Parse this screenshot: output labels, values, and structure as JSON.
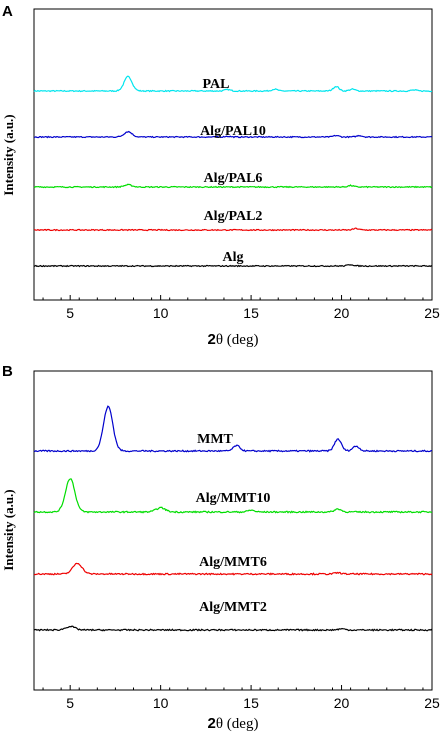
{
  "chart_data": [
    {
      "type": "line",
      "panel": "A",
      "xlabel_bold": "2",
      "xlabel_rest": "θ (deg)",
      "ylabel": "Intensity (a.u.)",
      "xlim": [
        3,
        25
      ],
      "xticks": [
        5,
        10,
        15,
        20,
        25
      ],
      "series": [
        {
          "name": "PAL",
          "color": "#00e5ee",
          "peaks": [
            [
              8.2,
              1.2
            ],
            [
              13.7,
              0.12
            ],
            [
              16.3,
              0.15
            ],
            [
              19.7,
              0.38
            ],
            [
              20.6,
              0.15
            ],
            [
              24.0,
              0.08
            ]
          ]
        },
        {
          "name": "Alg/PAL10",
          "color": "#0000cc",
          "peaks": [
            [
              8.2,
              0.45
            ],
            [
              13.7,
              0.06
            ],
            [
              19.7,
              0.12
            ],
            [
              21.0,
              0.12
            ]
          ]
        },
        {
          "name": "Alg/PAL6",
          "color": "#00dd00",
          "peaks": [
            [
              8.2,
              0.18
            ],
            [
              20.5,
              0.12
            ]
          ]
        },
        {
          "name": "Alg/PAL2",
          "color": "#ee0000",
          "peaks": [
            [
              20.8,
              0.12
            ]
          ]
        },
        {
          "name": "Alg",
          "color": "#000000",
          "peaks": [
            [
              20.5,
              0.12
            ]
          ]
        }
      ]
    },
    {
      "type": "line",
      "panel": "B",
      "xlabel_bold": "2",
      "xlabel_rest": "θ (deg)",
      "ylabel": "Intensity (a.u.)",
      "xlim": [
        3,
        25
      ],
      "xticks": [
        5,
        10,
        15,
        20,
        25
      ],
      "series": [
        {
          "name": "MMT",
          "color": "#0000cc",
          "peaks": [
            [
              7.1,
              3.7
            ],
            [
              14.2,
              0.45
            ],
            [
              19.8,
              1.0
            ],
            [
              20.8,
              0.4
            ]
          ]
        },
        {
          "name": "Alg/MMT10",
          "color": "#00dd00",
          "peaks": [
            [
              5.0,
              2.8
            ],
            [
              10.0,
              0.35
            ],
            [
              15.0,
              0.15
            ],
            [
              19.8,
              0.25
            ]
          ]
        },
        {
          "name": "Alg/MMT6",
          "color": "#ee0000",
          "peaks": [
            [
              5.4,
              0.9
            ],
            [
              19.8,
              0.1
            ]
          ]
        },
        {
          "name": "Alg/MMT2",
          "color": "#000000",
          "peaks": [
            [
              5.0,
              0.3
            ],
            [
              20.0,
              0.1
            ]
          ]
        }
      ]
    }
  ]
}
